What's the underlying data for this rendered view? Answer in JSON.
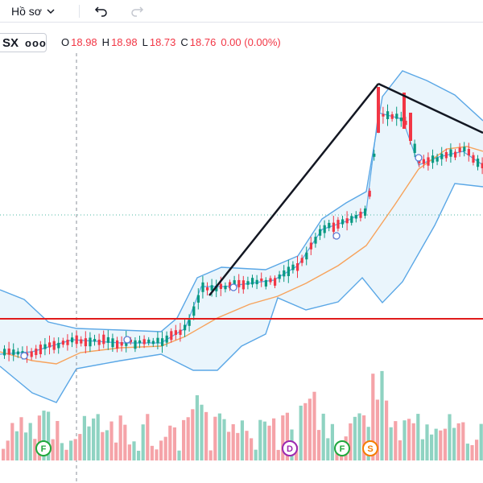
{
  "toolbar": {
    "profile_label": "Hồ sơ",
    "chevron_icon": "chevron-down-icon",
    "undo_icon": "undo-icon",
    "redo_icon": "redo-icon"
  },
  "legend": {
    "symbol": "SX",
    "more_label": "ooo",
    "open_key": "O",
    "open": "18.98",
    "high_key": "H",
    "high": "18.98",
    "low_key": "L",
    "low": "18.73",
    "close_key": "C",
    "close": "18.76",
    "change": "0.00 (0.00%)",
    "down_color": "#f23645",
    "up_color": "#089981"
  },
  "chart_data": {
    "type": "candlestick",
    "bollinger_color": "#5aa7e6",
    "ma_color": "#f7a35c",
    "support_line_color": "#e01b1b",
    "trendline_color": "#131722",
    "markers": [
      {
        "label": "F",
        "kind": "earnings",
        "color": "#1fa83c"
      },
      {
        "label": "D",
        "kind": "dividend",
        "color": "#9c27b0"
      },
      {
        "label": "F",
        "kind": "earnings",
        "color": "#1fa83c"
      },
      {
        "label": "S",
        "kind": "split",
        "color": "#f57c00"
      }
    ]
  }
}
